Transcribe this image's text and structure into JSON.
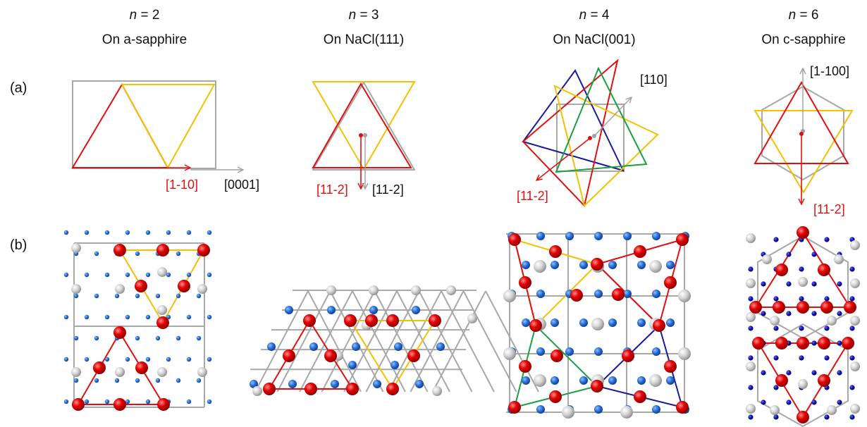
{
  "columns": [
    {
      "n_label": "n",
      "n_value": " = 2",
      "substrate": "On a-sapphire"
    },
    {
      "n_label": "n",
      "n_value": " = 3",
      "substrate": "On NaCl(111)"
    },
    {
      "n_label": "n",
      "n_value": " = 4",
      "substrate": "On NaCl(001)"
    },
    {
      "n_label": "n",
      "n_value": " = 6",
      "substrate": "On c-sapphire"
    }
  ],
  "row_labels": {
    "a": "(a)",
    "b": "(b)"
  },
  "directions": {
    "p1_red": "[1-10]",
    "p1_gray": "[0001]",
    "p2_red": "[11-2]",
    "p2_gray": "[11-2]",
    "p3_gray": "[110]",
    "p3_red": "[11-2]",
    "p4_gray": "[1-100]",
    "p4_red": "[11-2]"
  },
  "colors": {
    "red": "#e01010",
    "yellow": "#f5c000",
    "gray": "#a8a8a8",
    "blue": "#1a1aa0",
    "green": "#1aa040",
    "dot_blue": "#1a6fd0",
    "atom_red": "#e00000",
    "atom_gray": "#c8c8c8"
  }
}
